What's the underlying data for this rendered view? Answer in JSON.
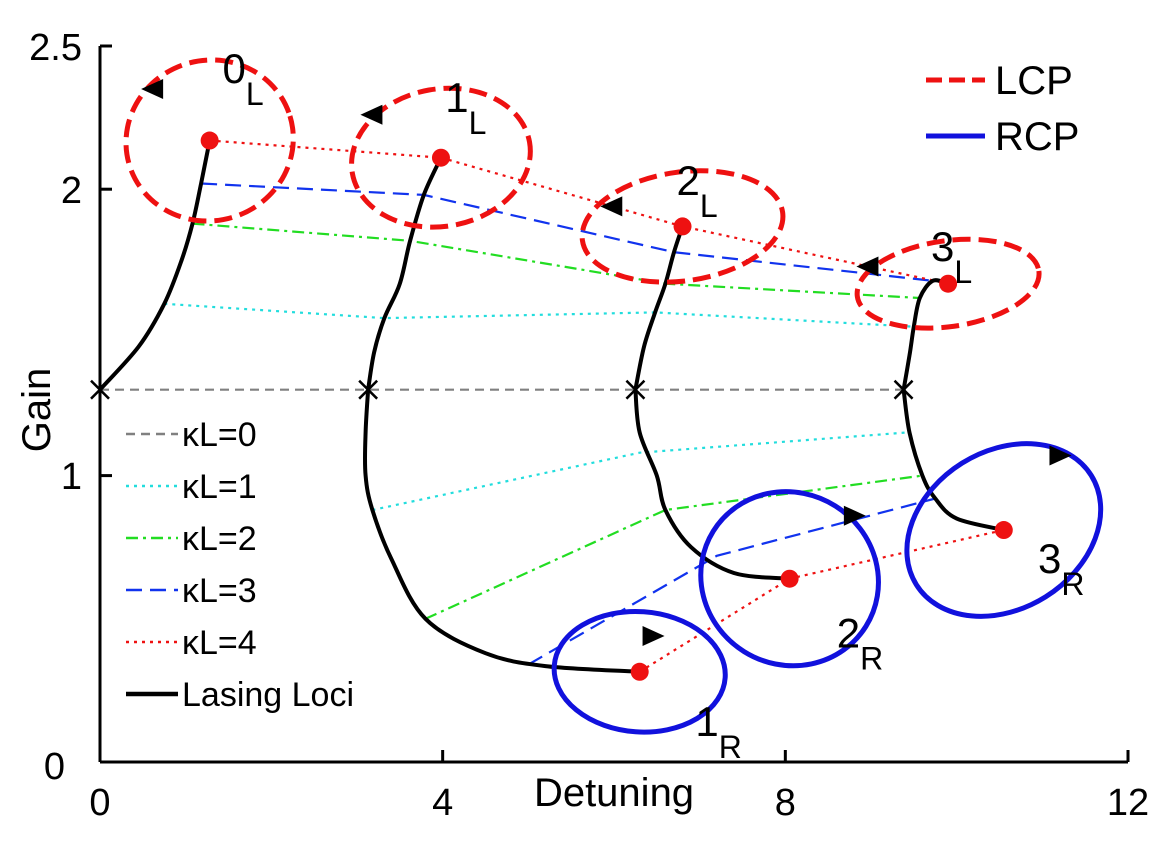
{
  "chart_data": {
    "type": "line",
    "xlabel": "Detuning",
    "ylabel": "Gain",
    "xlim": [
      0,
      12
    ],
    "ylim": [
      0,
      2.5
    ],
    "x_ticks": [
      {
        "value": 0,
        "label": "0"
      },
      {
        "value": 4,
        "label": "4"
      },
      {
        "value": 8,
        "label": "8"
      },
      {
        "value": 12,
        "label": "12"
      }
    ],
    "y_ticks": [
      {
        "value": 0,
        "label": "0"
      },
      {
        "value": 1,
        "label": "1"
      },
      {
        "value": 2,
        "label": "2"
      },
      {
        "value": 2.5,
        "label": "2.5"
      }
    ],
    "grid": false,
    "legend_main": {
      "placement": "top-right",
      "entries": [
        {
          "name": "LCP",
          "color": "#ee1111",
          "style": "dashed"
        },
        {
          "name": "RCP",
          "color": "#1111dd",
          "style": "solid"
        }
      ]
    },
    "legend_series": {
      "placement": "left-middle",
      "entries": [
        {
          "name": "κL=0",
          "color": "#808080",
          "dash": "9,6"
        },
        {
          "name": "κL=1",
          "color": "#22dddd",
          "dash": "3,5"
        },
        {
          "name": "κL=2",
          "color": "#22dd22",
          "dash": "12,5,3,5"
        },
        {
          "name": "κL=3",
          "color": "#1133ee",
          "dash": "16,8"
        },
        {
          "name": "κL=4",
          "color": "#ee1111",
          "dash": "3,5"
        },
        {
          "name": "Lasing Loci",
          "color": "#000000",
          "dash": ""
        }
      ]
    },
    "lasing_loci": [
      {
        "mode": 0,
        "points": [
          [
            0,
            1.3
          ],
          [
            0.45,
            1.45
          ],
          [
            0.75,
            1.6
          ],
          [
            0.95,
            1.75
          ],
          [
            1.08,
            1.88
          ],
          [
            1.18,
            2.02
          ],
          [
            1.28,
            2.17
          ]
        ]
      },
      {
        "mode": 1,
        "points": [
          [
            3.13,
            1.3
          ],
          [
            3.2,
            1.43
          ],
          [
            3.32,
            1.55
          ],
          [
            3.5,
            1.67
          ],
          [
            3.62,
            1.82
          ],
          [
            3.78,
            1.98
          ],
          [
            3.98,
            2.11
          ]
        ]
      },
      {
        "mode": 2,
        "points": [
          [
            6.25,
            1.3
          ],
          [
            6.35,
            1.45
          ],
          [
            6.48,
            1.57
          ],
          [
            6.6,
            1.67
          ],
          [
            6.7,
            1.78
          ],
          [
            6.8,
            1.87
          ]
        ]
      },
      {
        "mode": 3,
        "points": [
          [
            9.38,
            1.3
          ],
          [
            9.45,
            1.42
          ],
          [
            9.5,
            1.52
          ],
          [
            9.57,
            1.62
          ],
          [
            9.72,
            1.68
          ],
          [
            9.9,
            1.67
          ]
        ]
      },
      {
        "mode": 1,
        "points": [
          [
            3.13,
            1.3
          ],
          [
            3.1,
            1.15
          ],
          [
            3.1,
            1.0
          ],
          [
            3.18,
            0.88
          ],
          [
            3.4,
            0.71
          ],
          [
            3.8,
            0.5
          ],
          [
            4.5,
            0.38
          ],
          [
            5.2,
            0.335
          ],
          [
            6.3,
            0.315
          ]
        ]
      },
      {
        "mode": 2,
        "points": [
          [
            6.25,
            1.3
          ],
          [
            6.3,
            1.15
          ],
          [
            6.5,
            1.0
          ],
          [
            6.6,
            0.88
          ],
          [
            6.9,
            0.75
          ],
          [
            7.4,
            0.66
          ],
          [
            8.05,
            0.64
          ]
        ]
      },
      {
        "mode": 3,
        "points": [
          [
            9.38,
            1.3
          ],
          [
            9.45,
            1.15
          ],
          [
            9.6,
            1.0
          ],
          [
            9.75,
            0.92
          ],
          [
            10.0,
            0.85
          ],
          [
            10.55,
            0.81
          ]
        ]
      }
    ],
    "kappa_curves": [
      {
        "kappaL": 0,
        "points": [
          [
            0,
            1.3
          ],
          [
            3.13,
            1.3
          ],
          [
            6.25,
            1.3
          ],
          [
            9.38,
            1.3
          ]
        ]
      },
      {
        "kappaL": 1,
        "points": [
          [
            0.75,
            1.6
          ],
          [
            3.32,
            1.55
          ],
          [
            6.48,
            1.57
          ],
          [
            9.5,
            1.52
          ]
        ]
      },
      {
        "kappaL": 2,
        "points": [
          [
            1.08,
            1.88
          ],
          [
            3.62,
            1.82
          ],
          [
            6.6,
            1.67
          ],
          [
            9.57,
            1.62
          ]
        ]
      },
      {
        "kappaL": 3,
        "points": [
          [
            1.18,
            2.02
          ],
          [
            3.78,
            1.98
          ],
          [
            6.7,
            1.78
          ],
          [
            9.72,
            1.68
          ]
        ]
      },
      {
        "kappaL": 4,
        "points": [
          [
            1.28,
            2.17
          ],
          [
            3.98,
            2.11
          ],
          [
            6.8,
            1.87
          ],
          [
            9.9,
            1.67
          ]
        ]
      },
      {
        "kappaL": 1,
        "points": [
          [
            3.18,
            0.88
          ],
          [
            6.3,
            1.08
          ],
          [
            9.4,
            1.15
          ]
        ]
      },
      {
        "kappaL": 2,
        "points": [
          [
            3.8,
            0.5
          ],
          [
            6.6,
            0.88
          ],
          [
            9.6,
            1.0
          ]
        ]
      },
      {
        "kappaL": 3,
        "points": [
          [
            5.0,
            0.34
          ],
          [
            7.2,
            0.72
          ],
          [
            9.75,
            0.92
          ]
        ]
      },
      {
        "kappaL": 4,
        "points": [
          [
            6.3,
            0.315
          ],
          [
            8.05,
            0.64
          ],
          [
            10.55,
            0.81
          ]
        ]
      }
    ],
    "endpoints": [
      [
        1.28,
        2.17
      ],
      [
        3.98,
        2.11
      ],
      [
        6.8,
        1.87
      ],
      [
        9.9,
        1.67
      ],
      [
        6.3,
        0.315
      ],
      [
        8.05,
        0.64
      ],
      [
        10.55,
        0.81
      ]
    ],
    "crossings": [
      [
        0,
        1.3
      ],
      [
        3.13,
        1.3
      ],
      [
        6.25,
        1.3
      ],
      [
        9.38,
        1.3
      ]
    ],
    "polarization_ellipses": [
      {
        "pol": "LCP",
        "cx": 1.28,
        "cy": 2.17,
        "rx": 0.98,
        "ry": 0.28,
        "rot": 17,
        "arrow": [
          0.62,
          2.35
        ],
        "dir": "left"
      },
      {
        "pol": "LCP",
        "cx": 3.98,
        "cy": 2.11,
        "rx": 1.05,
        "ry": 0.24,
        "rot": 10,
        "arrow": [
          3.18,
          2.26
        ],
        "dir": "left"
      },
      {
        "pol": "LCP",
        "cx": 6.8,
        "cy": 1.87,
        "rx": 1.18,
        "ry": 0.19,
        "rot": 8,
        "arrow": [
          5.98,
          1.94
        ],
        "dir": "left"
      },
      {
        "pol": "LCP",
        "cx": 9.9,
        "cy": 1.67,
        "rx": 1.07,
        "ry": 0.15,
        "rot": 8,
        "arrow": [
          8.97,
          1.73
        ],
        "dir": "left"
      },
      {
        "pol": "RCP",
        "cx": 6.3,
        "cy": 0.315,
        "rx": 1.0,
        "ry": 0.21,
        "rot": -4,
        "arrow": [
          6.45,
          0.44
        ],
        "dir": "right"
      },
      {
        "pol": "RCP",
        "cx": 8.05,
        "cy": 0.64,
        "rx": 1.05,
        "ry": 0.3,
        "rot": -32,
        "arrow": [
          8.8,
          0.86
        ],
        "dir": "right"
      },
      {
        "pol": "RCP",
        "cx": 10.55,
        "cy": 0.81,
        "rx": 0.92,
        "ry": 0.36,
        "rot": -58,
        "arrow": [
          11.2,
          1.07
        ],
        "dir": "right"
      }
    ],
    "mode_labels": [
      {
        "main": "0",
        "sub": "L",
        "x": 1.43,
        "y": 2.37
      },
      {
        "main": "1",
        "sub": "L",
        "x": 4.03,
        "y": 2.27
      },
      {
        "main": "2",
        "sub": "L",
        "x": 6.73,
        "y": 1.98
      },
      {
        "main": "3",
        "sub": "L",
        "x": 9.7,
        "y": 1.75
      },
      {
        "main": "1",
        "sub": "R",
        "x": 6.95,
        "y": 0.09
      },
      {
        "main": "2",
        "sub": "R",
        "x": 8.6,
        "y": 0.4
      },
      {
        "main": "3",
        "sub": "R",
        "x": 10.95,
        "y": 0.66
      }
    ]
  }
}
